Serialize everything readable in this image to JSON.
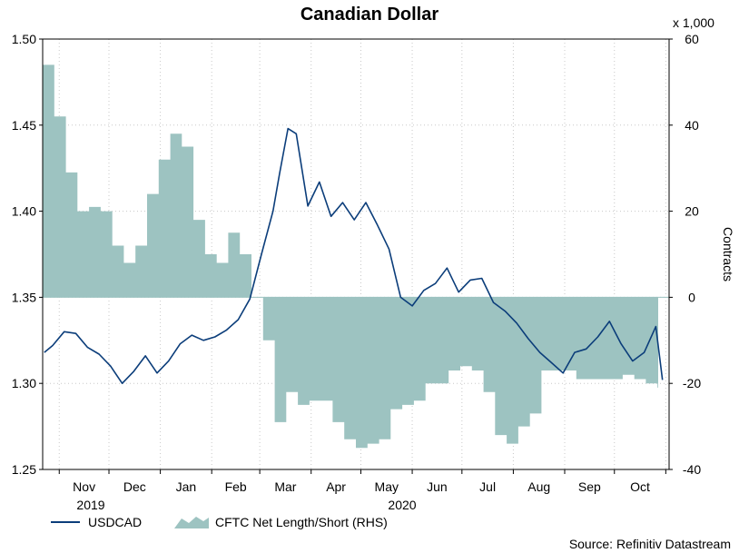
{
  "chart_data": {
    "type": "line",
    "title": "Canadian Dollar",
    "source": "Source: Refinitiv Datastream",
    "left_axis": {
      "ylim": [
        1.25,
        1.5
      ],
      "ticks": [
        "1.25",
        "1.30",
        "1.35",
        "1.40",
        "1.45",
        "1.50"
      ]
    },
    "right_axis": {
      "label": "Contracts",
      "unit": "x 1,000",
      "ylim": [
        -40,
        60
      ],
      "ticks": [
        "-40",
        "-20",
        "0",
        "20",
        "40",
        "60"
      ]
    },
    "x_axis": {
      "months": [
        "Nov",
        "Dec",
        "Jan",
        "Feb",
        "Mar",
        "Apr",
        "May",
        "Jun",
        "Jul",
        "Aug",
        "Sep",
        "Oct"
      ],
      "years": [
        "2019",
        "2020"
      ]
    },
    "grid": true,
    "legend_position": "bottom-left",
    "colors": {
      "usdcad": "#0b3d7a",
      "cftc": "#9dc3c1"
    },
    "series": [
      {
        "name": "USDCAD",
        "axis": "left",
        "style": "line",
        "x": [
          "2019-10-23",
          "2019-10-28",
          "2019-11-04",
          "2019-11-11",
          "2019-11-18",
          "2019-11-25",
          "2019-12-02",
          "2019-12-09",
          "2019-12-16",
          "2019-12-23",
          "2019-12-30",
          "2020-01-06",
          "2020-01-13",
          "2020-01-20",
          "2020-01-27",
          "2020-02-03",
          "2020-02-10",
          "2020-02-17",
          "2020-02-24",
          "2020-03-02",
          "2020-03-09",
          "2020-03-13",
          "2020-03-18",
          "2020-03-23",
          "2020-03-30",
          "2020-04-06",
          "2020-04-13",
          "2020-04-20",
          "2020-04-27",
          "2020-05-04",
          "2020-05-11",
          "2020-05-18",
          "2020-05-25",
          "2020-06-01",
          "2020-06-08",
          "2020-06-15",
          "2020-06-22",
          "2020-06-29",
          "2020-07-06",
          "2020-07-13",
          "2020-07-20",
          "2020-07-27",
          "2020-08-03",
          "2020-08-10",
          "2020-08-17",
          "2020-08-24",
          "2020-08-31",
          "2020-09-07",
          "2020-09-14",
          "2020-09-21",
          "2020-09-28",
          "2020-10-05",
          "2020-10-12",
          "2020-10-19",
          "2020-10-26",
          "2020-10-30"
        ],
        "values": [
          1.318,
          1.322,
          1.33,
          1.329,
          1.321,
          1.317,
          1.31,
          1.3,
          1.307,
          1.316,
          1.306,
          1.313,
          1.323,
          1.328,
          1.325,
          1.327,
          1.331,
          1.337,
          1.349,
          1.375,
          1.4,
          1.422,
          1.448,
          1.445,
          1.403,
          1.417,
          1.397,
          1.405,
          1.395,
          1.405,
          1.392,
          1.378,
          1.35,
          1.345,
          1.354,
          1.358,
          1.367,
          1.353,
          1.36,
          1.361,
          1.347,
          1.342,
          1.335,
          1.326,
          1.318,
          1.312,
          1.306,
          1.318,
          1.32,
          1.327,
          1.336,
          1.323,
          1.313,
          1.318,
          1.333,
          1.302
        ]
      },
      {
        "name": "CFTC Net Length/Short (RHS)",
        "axis": "right",
        "style": "step-area",
        "x": [
          "2019-10-22",
          "2019-10-29",
          "2019-11-05",
          "2019-11-12",
          "2019-11-19",
          "2019-11-26",
          "2019-12-03",
          "2019-12-10",
          "2019-12-17",
          "2019-12-24",
          "2019-12-31",
          "2020-01-07",
          "2020-01-14",
          "2020-01-21",
          "2020-01-28",
          "2020-02-04",
          "2020-02-11",
          "2020-02-18",
          "2020-02-25",
          "2020-03-03",
          "2020-03-10",
          "2020-03-17",
          "2020-03-24",
          "2020-03-31",
          "2020-04-07",
          "2020-04-14",
          "2020-04-21",
          "2020-04-28",
          "2020-05-05",
          "2020-05-12",
          "2020-05-19",
          "2020-05-26",
          "2020-06-02",
          "2020-06-09",
          "2020-06-16",
          "2020-06-23",
          "2020-06-30",
          "2020-07-07",
          "2020-07-14",
          "2020-07-21",
          "2020-07-28",
          "2020-08-04",
          "2020-08-11",
          "2020-08-18",
          "2020-08-25",
          "2020-09-01",
          "2020-09-08",
          "2020-09-15",
          "2020-09-22",
          "2020-09-29",
          "2020-10-06",
          "2020-10-13",
          "2020-10-20",
          "2020-10-27"
        ],
        "values": [
          54,
          42,
          29,
          20,
          21,
          20,
          12,
          8,
          12,
          24,
          32,
          38,
          35,
          18,
          10,
          8,
          15,
          10,
          0,
          -10,
          -29,
          -22,
          -25,
          -24,
          -24,
          -29,
          -33,
          -35,
          -34,
          -33,
          -26,
          -25,
          -24,
          -20,
          -20,
          -17,
          -16,
          -17,
          -22,
          -32,
          -34,
          -30,
          -27,
          -17,
          -17,
          -17,
          -19,
          -19,
          -19,
          -19,
          -18,
          -19,
          -20,
          -21
        ]
      }
    ]
  }
}
